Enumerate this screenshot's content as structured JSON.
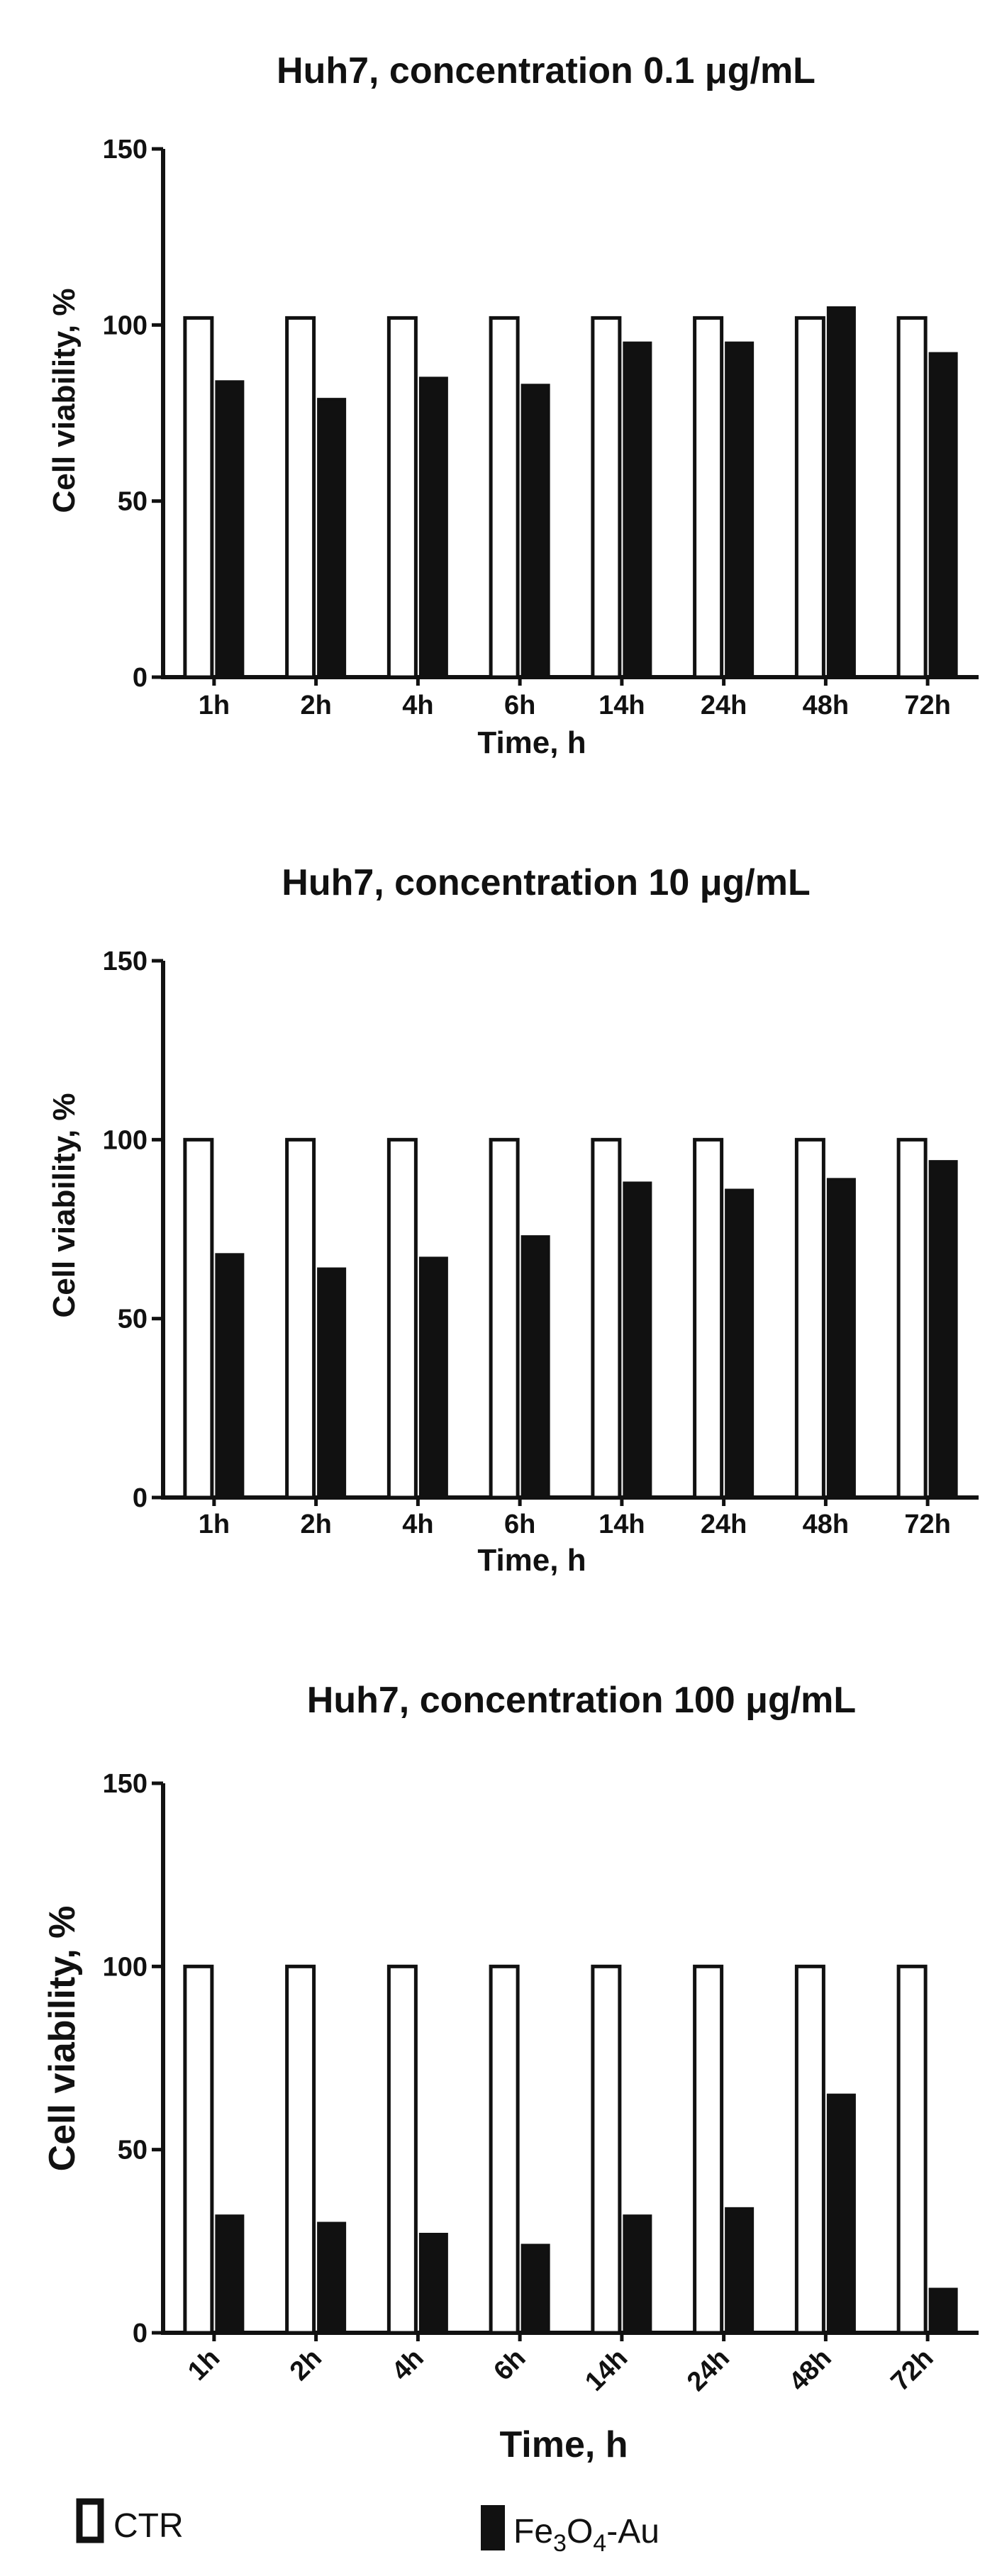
{
  "chart_data": [
    {
      "type": "bar",
      "title": "Huh7, concentration 0.1 μg/mL",
      "xlabel": "Time, h",
      "ylabel": "Cell viability, %",
      "categories": [
        "1h",
        "2h",
        "4h",
        "6h",
        "14h",
        "24h",
        "48h",
        "72h"
      ],
      "series": [
        {
          "name": "CTR",
          "values": [
            102,
            102,
            102,
            102,
            102,
            102,
            102,
            102
          ]
        },
        {
          "name": "Fe3O4-Au",
          "values": [
            84,
            79,
            85,
            83,
            95,
            95,
            105,
            92
          ]
        }
      ],
      "ylim": [
        0,
        150
      ],
      "yticks": [
        0,
        50,
        100,
        150
      ],
      "grid": false
    },
    {
      "type": "bar",
      "title": "Huh7, concentration 10 μg/mL",
      "xlabel": "Time, h",
      "ylabel": "Cell viability, %",
      "categories": [
        "1h",
        "2h",
        "4h",
        "6h",
        "14h",
        "24h",
        "48h",
        "72h"
      ],
      "series": [
        {
          "name": "CTR",
          "values": [
            100,
            100,
            100,
            100,
            100,
            100,
            100,
            100
          ]
        },
        {
          "name": "Fe3O4-Au",
          "values": [
            68,
            64,
            67,
            73,
            88,
            86,
            89,
            94
          ]
        }
      ],
      "ylim": [
        0,
        150
      ],
      "yticks": [
        0,
        50,
        100,
        150
      ],
      "grid": false
    },
    {
      "type": "bar",
      "title": "Huh7, concentration 100 μg/mL",
      "xlabel": "Time, h",
      "ylabel": "Cell viability, %",
      "categories": [
        "1h",
        "2h",
        "4h",
        "6h",
        "14h",
        "24h",
        "48h",
        "72h"
      ],
      "series": [
        {
          "name": "CTR",
          "values": [
            100,
            100,
            100,
            100,
            100,
            100,
            100,
            100
          ]
        },
        {
          "name": "Fe3O4-Au",
          "values": [
            32,
            30,
            27,
            24,
            32,
            34,
            65,
            12
          ]
        }
      ],
      "ylim": [
        0,
        150
      ],
      "yticks": [
        0,
        50,
        100,
        150
      ],
      "grid": false,
      "tick_rotation": -45
    }
  ],
  "legend": {
    "placement": "bottom",
    "items": [
      {
        "label": "CTR",
        "style": "outline"
      },
      {
        "label_main": "Fe",
        "sub1": "3",
        "mid": "O",
        "sub2": "4",
        "tail": "-Au",
        "style": "filled"
      }
    ]
  },
  "colors": {
    "ctr_fill": "#ffffff",
    "treated_fill": "#111111",
    "stroke": "#111111"
  }
}
